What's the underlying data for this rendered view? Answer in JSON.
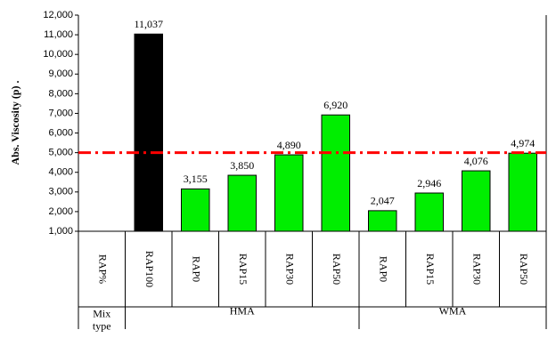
{
  "chart_data": {
    "type": "bar",
    "y_label": "Abs. Viscosity (p) .",
    "categories": [
      "RAP%",
      "RAP100",
      "RAP0",
      "RAP15",
      "RAP30",
      "RAP50",
      "RAP0",
      "RAP15",
      "RAP30",
      "RAP50"
    ],
    "values": [
      null,
      11037,
      3155,
      3850,
      4890,
      6920,
      2047,
      2946,
      4076,
      4974
    ],
    "value_labels": [
      null,
      "11,037",
      "3,155",
      "3,850",
      "4,890",
      "6,920",
      "2,047",
      "2,946",
      "4,076",
      "4,974"
    ],
    "colors": [
      null,
      "#000000",
      "#00ee00",
      "#00ee00",
      "#00ee00",
      "#00ee00",
      "#00ee00",
      "#00ee00",
      "#00ee00",
      "#00ee00"
    ],
    "group_header": "Mix type",
    "groups": [
      "HMA",
      "WMA"
    ],
    "ylim": [
      1000,
      12000
    ],
    "yticks": [
      {
        "value": 1000,
        "label": "1,000"
      },
      {
        "value": 2000,
        "label": "2,000"
      },
      {
        "value": 3000,
        "label": "3,000"
      },
      {
        "value": 4000,
        "label": "4,000"
      },
      {
        "value": 5000,
        "label": "5,000"
      },
      {
        "value": 6000,
        "label": "6,000"
      },
      {
        "value": 7000,
        "label": "7,000"
      },
      {
        "value": 8000,
        "label": "8,000"
      },
      {
        "value": 9000,
        "label": "9,000"
      },
      {
        "value": 10000,
        "label": "10,000"
      },
      {
        "value": 11000,
        "label": "11,000"
      },
      {
        "value": 12000,
        "label": "12,000"
      }
    ],
    "reference_line": {
      "value": 5000,
      "color": "#ff0000"
    },
    "grid": false
  }
}
